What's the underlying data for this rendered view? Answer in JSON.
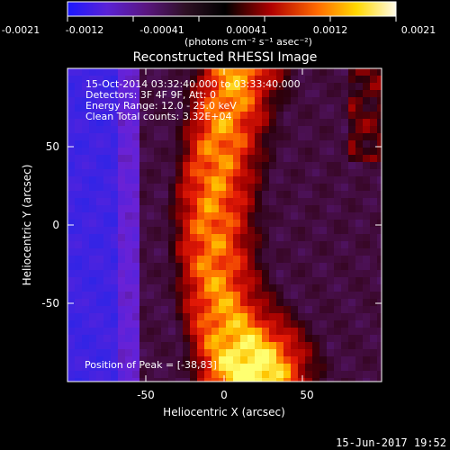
{
  "chart_data": {
    "type": "heatmap",
    "title": "Reconstructed RHESSI Image",
    "xlabel": "Heliocentric X (arcsec)",
    "ylabel": "Heliocentric Y (arcsec)",
    "xlim": [
      -100,
      100
    ],
    "ylim": [
      -100,
      100
    ],
    "xticks": [
      -50,
      0,
      50
    ],
    "yticks": [
      -50,
      0,
      50
    ],
    "colorbar": {
      "units": "(photons cm⁻² s⁻¹ asec⁻²)",
      "ticks": [
        "-0.0021",
        "-0.0012",
        "-0.00041",
        "0.00041",
        "0.0012",
        "0.0021"
      ],
      "range": [
        -0.0021,
        0.0021
      ]
    },
    "info": {
      "line1": "15-Oct-2014 03:32:40.000 to 03:33:40.000",
      "line2": "Detectors: 3F 4F 9F, Att: 0",
      "line3": "Energy Range: 12.0 - 25.0 keV",
      "line4": "Clean     Total counts: 3.32E+04"
    },
    "peak_label": "Position of Peak = [-38,83]",
    "peak": [
      -38,
      83
    ],
    "colors": {
      "low": "#2a24e8",
      "mid_low": "#6a22d6",
      "dark": "#2b000b",
      "red": "#d40b08",
      "orange": "#ff7a00",
      "yellow": "#ffff70"
    }
  },
  "footer": {
    "timestamp": "15-Jun-2017 19:52"
  }
}
